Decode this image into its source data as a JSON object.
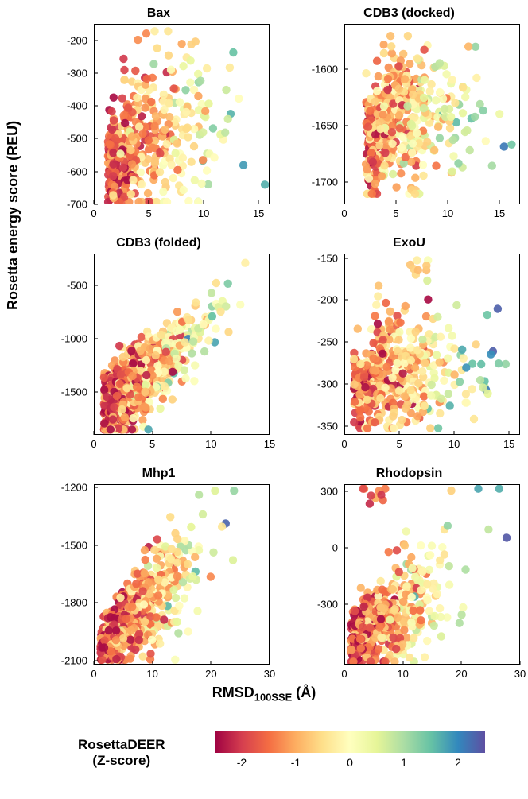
{
  "global": {
    "ylabel": "Rosetta energy score (REU)",
    "xlabel_prefix": "RMSD",
    "xlabel_sub": "100SSE",
    "xlabel_suffix": " (Å)",
    "colorbar_label_line1": "RosettaDEER",
    "colorbar_label_line2": "(Z-score)",
    "background_color": "#ffffff",
    "axis_color": "#000000",
    "tick_fontsize": 13,
    "title_fontsize": 16,
    "label_fontsize": 18,
    "marker_radius": 5.2,
    "marker_opacity": 0.92
  },
  "colormap": {
    "zmin": -2.5,
    "zmax": 2.5,
    "stops": [
      {
        "p": 0.0,
        "c": "#9e0142"
      },
      {
        "p": 0.1,
        "c": "#d53e4f"
      },
      {
        "p": 0.2,
        "c": "#f46d43"
      },
      {
        "p": 0.3,
        "c": "#fdae61"
      },
      {
        "p": 0.4,
        "c": "#fee08b"
      },
      {
        "p": 0.5,
        "c": "#ffffbf"
      },
      {
        "p": 0.6,
        "c": "#e6f598"
      },
      {
        "p": 0.7,
        "c": "#abdda4"
      },
      {
        "p": 0.8,
        "c": "#66c2a5"
      },
      {
        "p": 0.9,
        "c": "#3288bd"
      },
      {
        "p": 1.0,
        "c": "#5e4fa2"
      }
    ],
    "ticks": [
      -2,
      -1,
      0,
      1,
      2
    ]
  },
  "panels": [
    {
      "title": "Bax",
      "xlim": [
        0,
        16
      ],
      "xticks": [
        0,
        5,
        10,
        15
      ],
      "ylim": [
        -700,
        -150
      ],
      "yticks": [
        -200,
        -300,
        -400,
        -500,
        -600,
        -700
      ],
      "n_points": 420,
      "seed": 11,
      "dist": "bax"
    },
    {
      "title": "CDB3 (docked)",
      "xlim": [
        0,
        17
      ],
      "xticks": [
        0,
        5,
        10,
        15
      ],
      "ylim": [
        -1720,
        -1560
      ],
      "yticks": [
        -1600,
        -1650,
        -1700
      ],
      "n_points": 480,
      "seed": 22,
      "dist": "cdb3d"
    },
    {
      "title": "CDB3 (folded)",
      "xlim": [
        0,
        15
      ],
      "xticks": [
        0,
        5,
        10,
        15
      ],
      "ylim": [
        -1900,
        -200
      ],
      "yticks": [
        -500,
        -1000,
        -1500
      ],
      "n_points": 900,
      "seed": 33,
      "dist": "cdb3f"
    },
    {
      "title": "ExoU",
      "xlim": [
        0,
        16
      ],
      "xticks": [
        0,
        5,
        10,
        15
      ],
      "ylim": [
        -360,
        -145
      ],
      "yticks": [
        -150,
        -200,
        -250,
        -300,
        -350
      ],
      "n_points": 460,
      "seed": 44,
      "dist": "exou"
    },
    {
      "title": "Mhp1",
      "xlim": [
        0,
        30
      ],
      "xticks": [
        0,
        10,
        20,
        30
      ],
      "ylim": [
        -2120,
        -1180
      ],
      "yticks": [
        -1200,
        -1500,
        -1800,
        -2100
      ],
      "n_points": 650,
      "seed": 55,
      "dist": "mhp1"
    },
    {
      "title": "Rhodopsin",
      "xlim": [
        0,
        30
      ],
      "xticks": [
        0,
        10,
        20,
        30
      ],
      "ylim": [
        -620,
        340
      ],
      "yticks": [
        300,
        0,
        -300
      ],
      "n_points": 520,
      "seed": 66,
      "dist": "rhod"
    }
  ]
}
